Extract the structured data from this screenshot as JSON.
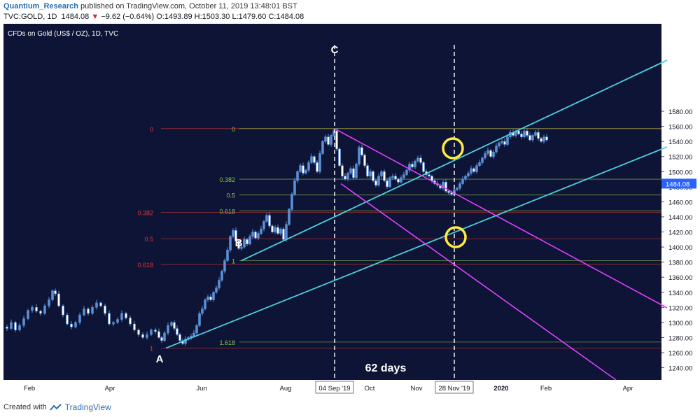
{
  "header": {
    "author": "Quantium_Research",
    "published_text": "published on TradingView.com, October 11, 2019 13:48:01 BST",
    "symbol": "TVC:GOLD, 1D",
    "last": "1484.08",
    "change_arrow": "▼",
    "change": "−9.62 (−0.64%)",
    "ohlc": "O:1493.89 H:1503.30 L:1479.60 C:1484.08"
  },
  "footer": {
    "created_with": "Created with",
    "brand": "TradingView"
  },
  "colors": {
    "background": "#0d1435",
    "candle": "#5b8fd6",
    "trendline": "#4dd0e1",
    "channel": "#e040fb",
    "fib_green": "#8bc34a",
    "fib_red": "#e53935",
    "circle": "#ffeb3b",
    "price_tag": "#2962ff"
  },
  "chart_data": {
    "type": "candlestick",
    "title": "CFDs on Gold (US$ / OZ), 1D, TVC",
    "ylim": [
      1236,
      1588
    ],
    "y_ticks": [
      1240,
      1260,
      1280,
      1300,
      1320,
      1340,
      1360,
      1380,
      1400,
      1420,
      1440,
      1460,
      1480,
      1500,
      1520,
      1540,
      1560,
      1580
    ],
    "x_ticks": [
      "Feb",
      "Apr",
      "Jun",
      "Aug",
      "Oct",
      "Nov",
      "2020",
      "Feb",
      "Apr"
    ],
    "x_markers": [
      "04 Sep '19",
      "28 Nov '19"
    ],
    "last_price": "1484.08",
    "points": [
      {
        "label": "A",
        "date": "2019-05-02",
        "price": 1266
      },
      {
        "label": "B",
        "date": "2019-06-25",
        "price": 1382
      },
      {
        "label": "C",
        "date": "2019-09-04",
        "price": 1557
      }
    ],
    "fib_green": [
      {
        "label": "0",
        "value": 1557
      },
      {
        "label": "0.382",
        "value": 1490
      },
      {
        "label": "0.5",
        "value": 1469
      },
      {
        "label": "0.618",
        "value": 1448
      },
      {
        "label": "1",
        "value": 1382
      },
      {
        "label": "1.618",
        "value": 1274
      }
    ],
    "fib_red": [
      {
        "label": "0",
        "value": 1557
      },
      {
        "label": "0.382",
        "value": 1446
      },
      {
        "label": "0.5",
        "value": 1411
      },
      {
        "label": "0.618",
        "value": 1377
      },
      {
        "label": "1",
        "value": 1266
      }
    ],
    "annotation": "62 days",
    "price_path": [
      [
        0,
        1294
      ],
      [
        6,
        1292
      ],
      [
        12,
        1300
      ],
      [
        18,
        1290
      ],
      [
        24,
        1296
      ],
      [
        30,
        1305
      ],
      [
        36,
        1316
      ],
      [
        42,
        1320
      ],
      [
        48,
        1315
      ],
      [
        54,
        1312
      ],
      [
        60,
        1322
      ],
      [
        66,
        1330
      ],
      [
        70,
        1342
      ],
      [
        74,
        1338
      ],
      [
        80,
        1322
      ],
      [
        86,
        1310
      ],
      [
        92,
        1298
      ],
      [
        98,
        1294
      ],
      [
        104,
        1300
      ],
      [
        110,
        1310
      ],
      [
        116,
        1318
      ],
      [
        122,
        1312
      ],
      [
        128,
        1320
      ],
      [
        134,
        1326
      ],
      [
        140,
        1322
      ],
      [
        146,
        1312
      ],
      [
        152,
        1298
      ],
      [
        158,
        1300
      ],
      [
        164,
        1304
      ],
      [
        170,
        1312
      ],
      [
        176,
        1306
      ],
      [
        182,
        1298
      ],
      [
        188,
        1290
      ],
      [
        194,
        1284
      ],
      [
        200,
        1280
      ],
      [
        206,
        1284
      ],
      [
        212,
        1290
      ],
      [
        218,
        1288
      ],
      [
        222,
        1280
      ],
      [
        226,
        1276
      ],
      [
        230,
        1286
      ],
      [
        236,
        1296
      ],
      [
        240,
        1300
      ],
      [
        244,
        1292
      ],
      [
        248,
        1284
      ],
      [
        252,
        1276
      ],
      [
        256,
        1272
      ],
      [
        260,
        1278
      ],
      [
        264,
        1280
      ],
      [
        268,
        1282
      ],
      [
        272,
        1286
      ],
      [
        276,
        1296
      ],
      [
        280,
        1312
      ],
      [
        284,
        1318
      ],
      [
        288,
        1330
      ],
      [
        292,
        1334
      ],
      [
        296,
        1330
      ],
      [
        300,
        1340
      ],
      [
        304,
        1346
      ],
      [
        308,
        1356
      ],
      [
        312,
        1368
      ],
      [
        316,
        1382
      ],
      [
        320,
        1396
      ],
      [
        324,
        1414
      ],
      [
        328,
        1422
      ],
      [
        332,
        1408
      ],
      [
        336,
        1398
      ],
      [
        340,
        1400
      ],
      [
        344,
        1410
      ],
      [
        348,
        1404
      ],
      [
        352,
        1414
      ],
      [
        356,
        1420
      ],
      [
        360,
        1412
      ],
      [
        364,
        1418
      ],
      [
        368,
        1424
      ],
      [
        372,
        1434
      ],
      [
        376,
        1442
      ],
      [
        380,
        1428
      ],
      [
        384,
        1420
      ],
      [
        388,
        1426
      ],
      [
        392,
        1418
      ],
      [
        396,
        1424
      ],
      [
        400,
        1410
      ],
      [
        404,
        1430
      ],
      [
        408,
        1450
      ],
      [
        412,
        1470
      ],
      [
        416,
        1488
      ],
      [
        420,
        1500
      ],
      [
        424,
        1508
      ],
      [
        428,
        1498
      ],
      [
        432,
        1502
      ],
      [
        436,
        1512
      ],
      [
        440,
        1520
      ],
      [
        444,
        1512
      ],
      [
        448,
        1500
      ],
      [
        452,
        1524
      ],
      [
        456,
        1540
      ],
      [
        460,
        1546
      ],
      [
        464,
        1536
      ],
      [
        468,
        1548
      ],
      [
        472,
        1554
      ],
      [
        476,
        1530
      ],
      [
        480,
        1508
      ],
      [
        484,
        1494
      ],
      [
        488,
        1490
      ],
      [
        492,
        1498
      ],
      [
        496,
        1504
      ],
      [
        500,
        1492
      ],
      [
        504,
        1510
      ],
      [
        508,
        1532
      ],
      [
        512,
        1522
      ],
      [
        516,
        1508
      ],
      [
        520,
        1494
      ],
      [
        524,
        1500
      ],
      [
        528,
        1488
      ],
      [
        532,
        1482
      ],
      [
        536,
        1494
      ],
      [
        540,
        1500
      ],
      [
        544,
        1488
      ],
      [
        548,
        1480
      ],
      [
        552,
        1492
      ],
      [
        556,
        1494
      ],
      [
        560,
        1490
      ],
      [
        564,
        1486
      ],
      [
        568,
        1492
      ],
      [
        572,
        1496
      ],
      [
        576,
        1502
      ],
      [
        580,
        1510
      ],
      [
        584,
        1506
      ],
      [
        588,
        1514
      ],
      [
        592,
        1518
      ],
      [
        596,
        1512
      ],
      [
        600,
        1500
      ],
      [
        604,
        1496
      ],
      [
        608,
        1494
      ],
      [
        612,
        1488
      ],
      [
        616,
        1484
      ],
      [
        620,
        1482
      ],
      [
        624,
        1478
      ],
      [
        628,
        1486
      ],
      [
        632,
        1474
      ],
      [
        636,
        1472
      ],
      [
        640,
        1470
      ],
      [
        644,
        1476
      ],
      [
        648,
        1478
      ],
      [
        652,
        1484
      ],
      [
        656,
        1490
      ],
      [
        660,
        1494
      ],
      [
        664,
        1498
      ],
      [
        668,
        1504
      ],
      [
        672,
        1500
      ],
      [
        676,
        1508
      ],
      [
        680,
        1512
      ],
      [
        684,
        1518
      ],
      [
        688,
        1524
      ],
      [
        692,
        1528
      ],
      [
        696,
        1520
      ],
      [
        700,
        1526
      ],
      [
        704,
        1534
      ],
      [
        708,
        1538
      ],
      [
        712,
        1540
      ],
      [
        716,
        1536
      ],
      [
        720,
        1546
      ],
      [
        724,
        1552
      ],
      [
        728,
        1548
      ],
      [
        732,
        1554
      ],
      [
        736,
        1550
      ],
      [
        740,
        1546
      ],
      [
        744,
        1554
      ],
      [
        748,
        1548
      ],
      [
        752,
        1542
      ],
      [
        756,
        1548
      ],
      [
        760,
        1552
      ],
      [
        764,
        1544
      ],
      [
        768,
        1540
      ],
      [
        772,
        1546
      ],
      [
        776,
        1542
      ]
    ]
  }
}
